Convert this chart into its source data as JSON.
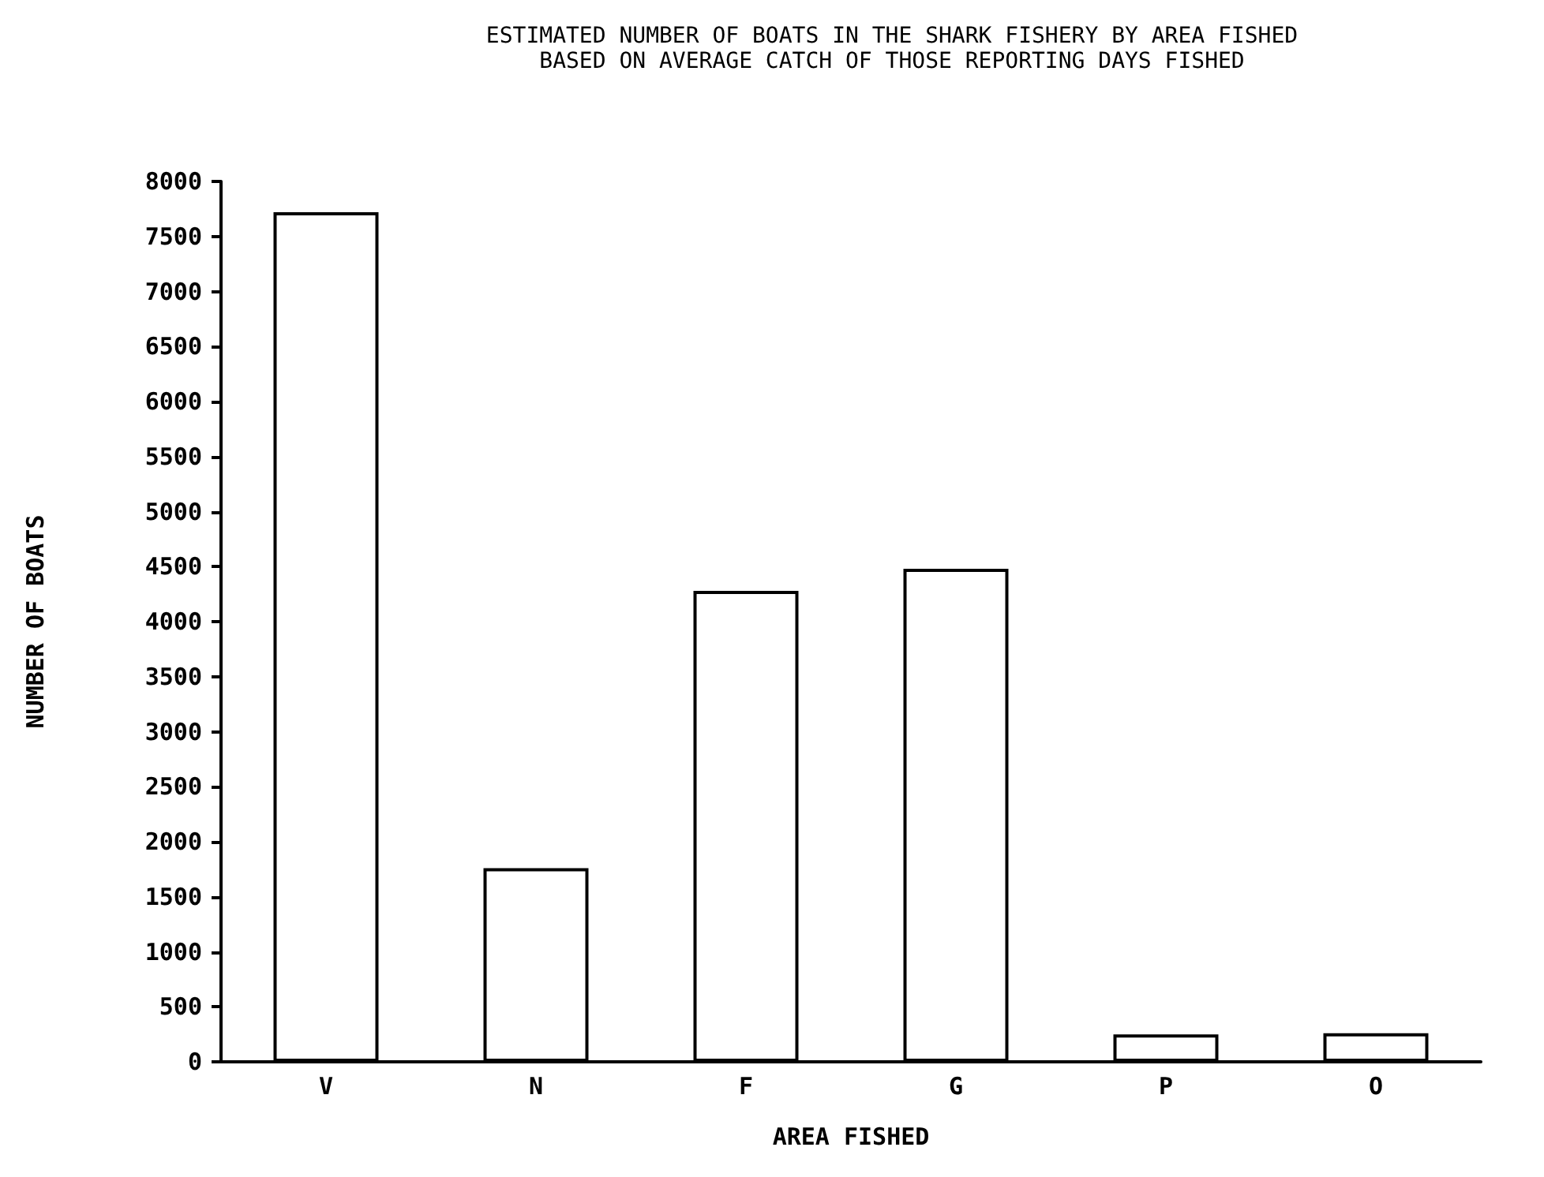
{
  "chart_data": {
    "type": "bar",
    "title": "ESTIMATED NUMBER OF BOATS IN THE SHARK FISHERY BY AREA FISHED\nBASED ON AVERAGE CATCH OF THOSE REPORTING DAYS FISHED",
    "xlabel": "AREA FISHED",
    "ylabel": "NUMBER OF BOATS",
    "categories": [
      "V",
      "N",
      "F",
      "G",
      "P",
      "O"
    ],
    "values": [
      7720,
      1760,
      4280,
      4480,
      250,
      260
    ],
    "color": "#ffffff",
    "ylim": [
      0,
      8000
    ],
    "yticks": [
      0,
      500,
      1000,
      1500,
      2000,
      2500,
      3000,
      3500,
      4000,
      4500,
      5000,
      5500,
      6000,
      6500,
      7000,
      7500,
      8000
    ],
    "grid": false
  }
}
